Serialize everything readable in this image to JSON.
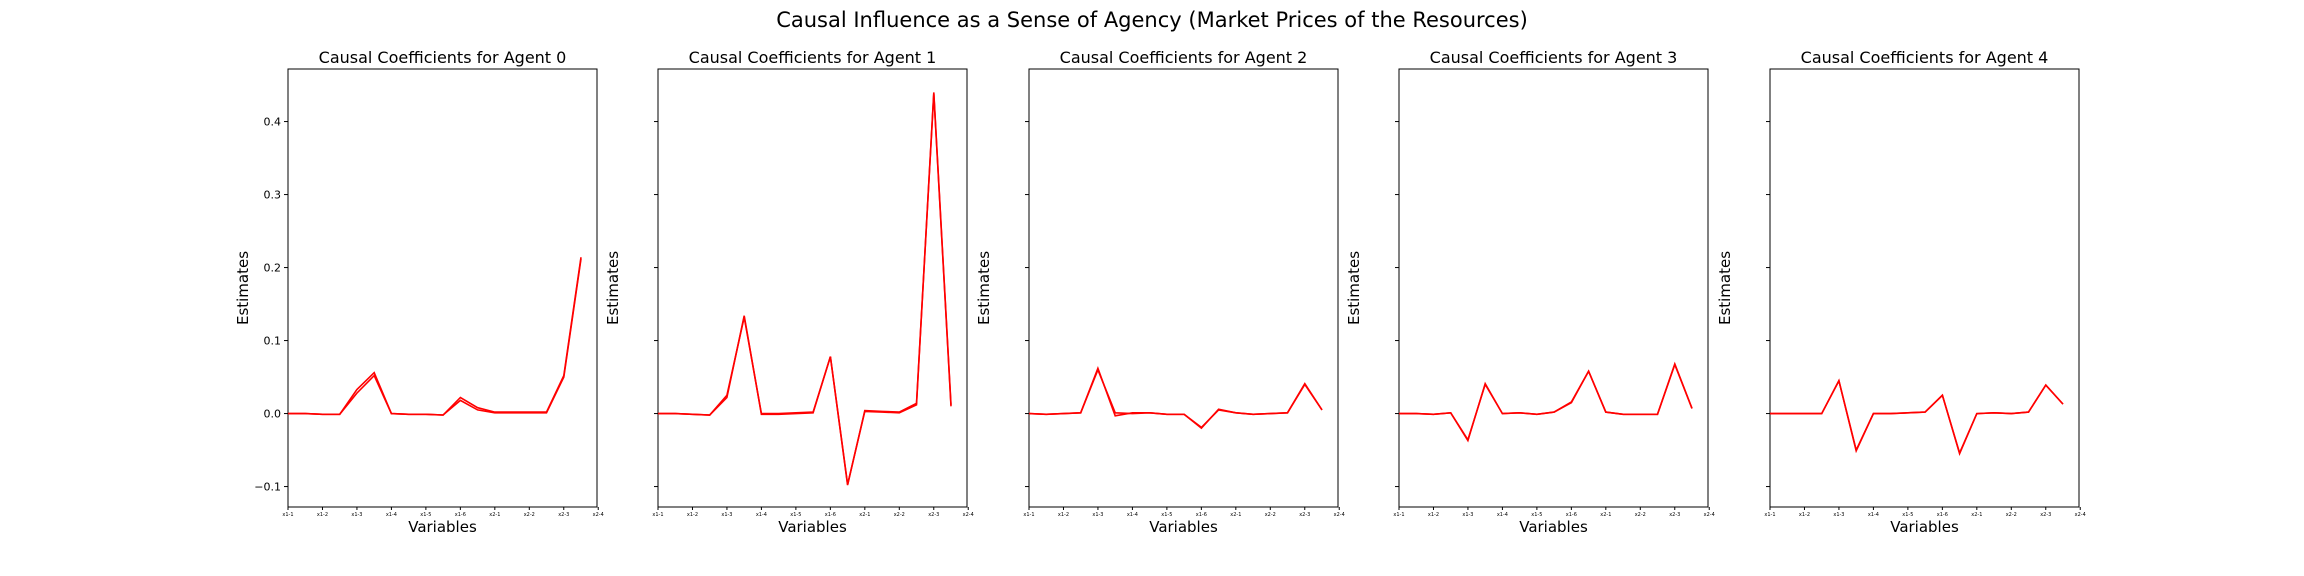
{
  "figure": {
    "title": "Causal Influence as a Sense of Agency (Market Prices of the Resources)"
  },
  "chart_data": [
    {
      "type": "line",
      "title": "Causal Coefficients for Agent 0",
      "xlabel": "Variables",
      "ylabel": "Estimates",
      "ylim": [
        -0.128,
        0.472
      ],
      "y_ticks": [
        -0.1,
        0.0,
        0.1,
        0.2,
        0.3,
        0.4
      ],
      "x_tick_labels": [
        "x1-1",
        "x1-2",
        "x1-3",
        "x1-4",
        "x1-5",
        "x1-6",
        "x2-1",
        "x2-2",
        "x2-3",
        "x2-4"
      ],
      "line_color": "#ff0000",
      "series": [
        {
          "values": [
            0.0,
            0.0,
            -0.001,
            -0.001,
            0.028,
            0.052,
            0.0,
            -0.001,
            -0.001,
            -0.002,
            0.018,
            0.005,
            0.001,
            0.001,
            0.001,
            0.001,
            0.05,
            0.212
          ]
        },
        {
          "values": [
            0.0,
            0.0,
            -0.001,
            -0.001,
            0.033,
            0.056,
            0.0,
            -0.001,
            -0.001,
            -0.002,
            0.022,
            0.008,
            0.002,
            0.002,
            0.002,
            0.002,
            0.052,
            0.214
          ]
        }
      ]
    },
    {
      "type": "line",
      "title": "Causal Coefficients for Agent 1",
      "xlabel": "Variables",
      "ylabel": "Estimates",
      "ylim": [
        -0.128,
        0.472
      ],
      "y_ticks": [
        -0.1,
        0.0,
        0.1,
        0.2,
        0.3,
        0.4
      ],
      "x_tick_labels": [
        "x1-1",
        "x1-2",
        "x1-3",
        "x1-4",
        "x1-5",
        "x1-6",
        "x2-1",
        "x2-2",
        "x2-3",
        "x2-4"
      ],
      "line_color": "#ff0000",
      "series": [
        {
          "values": [
            0.0,
            0.0,
            -0.001,
            -0.002,
            0.022,
            0.134,
            -0.001,
            -0.001,
            0.0,
            0.001,
            0.078,
            -0.097,
            0.003,
            0.002,
            0.001,
            0.012,
            0.44,
            0.012
          ]
        },
        {
          "values": [
            0.0,
            0.0,
            -0.001,
            -0.002,
            0.025,
            0.132,
            0.0,
            0.0,
            0.001,
            0.002,
            0.078,
            -0.098,
            0.004,
            0.003,
            0.002,
            0.014,
            0.438,
            0.01
          ]
        }
      ]
    },
    {
      "type": "line",
      "title": "Causal Coefficients for Agent 2",
      "xlabel": "Variables",
      "ylabel": "Estimates",
      "ylim": [
        -0.128,
        0.472
      ],
      "y_ticks": [
        -0.1,
        0.0,
        0.1,
        0.2,
        0.3,
        0.4
      ],
      "x_tick_labels": [
        "x1-1",
        "x1-2",
        "x1-3",
        "x1-4",
        "x1-5",
        "x1-6",
        "x2-1",
        "x2-2",
        "x2-3",
        "x2-4"
      ],
      "line_color": "#ff0000",
      "series": [
        {
          "values": [
            0.0,
            -0.001,
            0.0,
            0.001,
            0.06,
            0.001,
            0.0,
            0.001,
            -0.001,
            -0.001,
            -0.019,
            0.005,
            0.001,
            -0.001,
            0.0,
            0.001,
            0.04,
            0.005
          ]
        },
        {
          "values": [
            0.0,
            -0.001,
            0.0,
            0.001,
            0.062,
            -0.003,
            0.001,
            0.001,
            -0.001,
            -0.001,
            -0.02,
            0.006,
            0.001,
            -0.001,
            0.0,
            0.001,
            0.041,
            0.005
          ]
        }
      ]
    },
    {
      "type": "line",
      "title": "Causal Coefficients for Agent 3",
      "xlabel": "Variables",
      "ylabel": "Estimates",
      "ylim": [
        -0.128,
        0.472
      ],
      "y_ticks": [
        -0.1,
        0.0,
        0.1,
        0.2,
        0.3,
        0.4
      ],
      "x_tick_labels": [
        "x1-1",
        "x1-2",
        "x1-3",
        "x1-4",
        "x1-5",
        "x1-6",
        "x2-1",
        "x2-2",
        "x2-3",
        "x2-4"
      ],
      "line_color": "#ff0000",
      "series": [
        {
          "values": [
            0.0,
            0.0,
            -0.001,
            0.001,
            -0.036,
            0.04,
            0.0,
            0.001,
            -0.001,
            0.002,
            0.015,
            0.058,
            0.002,
            -0.001,
            -0.001,
            -0.001,
            0.068,
            0.007
          ]
        },
        {
          "values": [
            0.0,
            0.0,
            -0.001,
            0.001,
            -0.037,
            0.041,
            0.0,
            0.001,
            -0.001,
            0.002,
            0.016,
            0.058,
            0.002,
            -0.001,
            -0.001,
            -0.001,
            0.067,
            0.007
          ]
        }
      ]
    },
    {
      "type": "line",
      "title": "Causal Coefficients for Agent 4",
      "xlabel": "Variables",
      "ylabel": "Estimates",
      "ylim": [
        -0.128,
        0.472
      ],
      "y_ticks": [
        -0.1,
        0.0,
        0.1,
        0.2,
        0.3,
        0.4
      ],
      "x_tick_labels": [
        "x1-1",
        "x1-2",
        "x1-3",
        "x1-4",
        "x1-5",
        "x1-6",
        "x2-1",
        "x2-2",
        "x2-3",
        "x2-4"
      ],
      "line_color": "#ff0000",
      "series": [
        {
          "values": [
            0.0,
            0.0,
            0.0,
            0.0,
            0.045,
            -0.05,
            0.0,
            0.0,
            0.001,
            0.002,
            0.025,
            -0.054,
            0.0,
            0.001,
            0.0,
            0.002,
            0.039,
            0.013
          ]
        },
        {
          "values": [
            0.0,
            0.0,
            0.0,
            0.0,
            0.045,
            -0.051,
            0.0,
            0.0,
            0.001,
            0.002,
            0.025,
            -0.055,
            0.0,
            0.001,
            0.0,
            0.002,
            0.039,
            0.013
          ]
        }
      ]
    }
  ]
}
